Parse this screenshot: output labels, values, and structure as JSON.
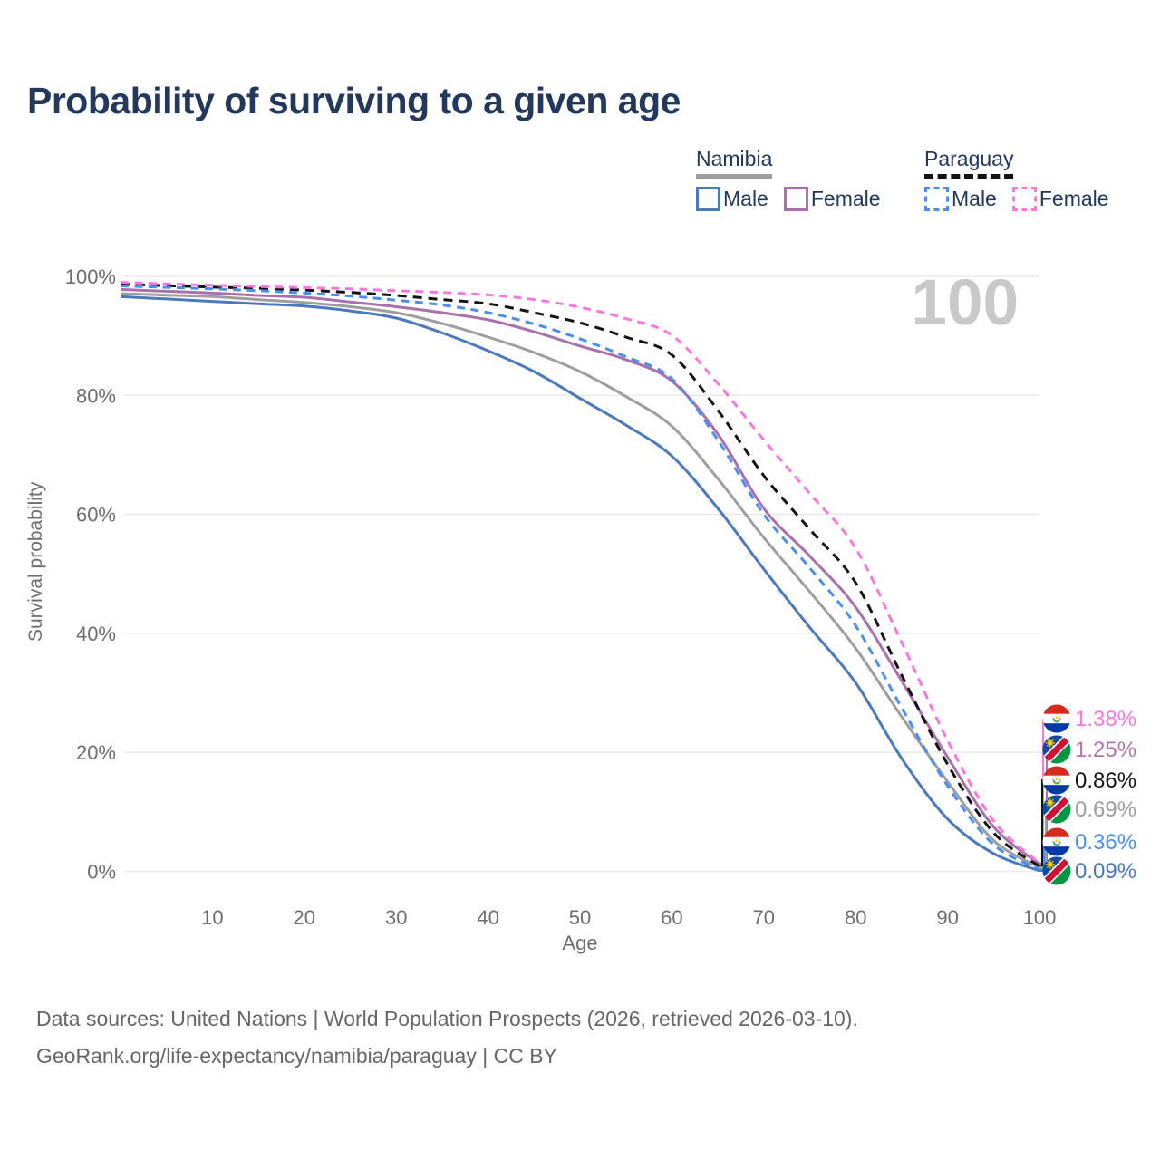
{
  "title": "Probability of surviving to a given age",
  "watermark": "100",
  "legend": {
    "groups": [
      {
        "country": "Namibia",
        "line_style": "solid",
        "underline_color": "#9e9e9e",
        "items": [
          {
            "label": "Male",
            "color": "#4a79bd"
          },
          {
            "label": "Female",
            "color": "#a970ab"
          }
        ]
      },
      {
        "country": "Paraguay",
        "line_style": "dashed",
        "underline_color": "#141414",
        "items": [
          {
            "label": "Male",
            "color": "#4a8fee"
          },
          {
            "label": "Female",
            "color": "#fc77dd"
          }
        ]
      }
    ]
  },
  "axes": {
    "y_label": "Survival probability",
    "x_label": "Age",
    "y_ticks": [
      "0%",
      "20%",
      "40%",
      "60%",
      "80%",
      "100%"
    ],
    "x_ticks": [
      10,
      20,
      30,
      40,
      50,
      60,
      70,
      80,
      90,
      100
    ]
  },
  "chart_data": {
    "type": "line",
    "title": "Probability of surviving to a given age",
    "xlabel": "Age",
    "ylabel": "Survival probability",
    "xlim": [
      0,
      100
    ],
    "ylim": [
      0,
      100
    ],
    "y_unit": "percent",
    "grid": "horizontal",
    "legend_position": "top-right",
    "x": [
      0,
      5,
      10,
      15,
      20,
      25,
      30,
      35,
      40,
      45,
      50,
      55,
      60,
      65,
      70,
      75,
      80,
      85,
      90,
      95,
      100
    ],
    "series": [
      {
        "name": "Namibia Both sexes",
        "country": "Namibia",
        "sex": "Both sexes",
        "style": "solid",
        "color": "#9e9e9e",
        "values": [
          97.1,
          96.85,
          96.6,
          96.1,
          95.6,
          94.9,
          93.9,
          92.1,
          89.8,
          87.2,
          84.0,
          79.8,
          74.8,
          66.0,
          56.1,
          47.0,
          37.5,
          26.0,
          15.1,
          5.2,
          0.69
        ]
      },
      {
        "name": "Namibia Male",
        "country": "Namibia",
        "sex": "Male",
        "style": "solid",
        "color": "#4a79bd",
        "values": [
          96.6,
          96.2,
          95.8,
          95.4,
          95.0,
          94.2,
          93.0,
          90.5,
          87.5,
          84.0,
          79.5,
          75.0,
          69.8,
          61.0,
          50.8,
          41.0,
          31.7,
          19.0,
          8.8,
          3.0,
          0.09
        ]
      },
      {
        "name": "Namibia Female",
        "country": "Namibia",
        "sex": "Female",
        "style": "solid",
        "color": "#a970ab",
        "values": [
          97.8,
          97.5,
          97.2,
          96.8,
          96.5,
          95.7,
          94.9,
          93.9,
          92.7,
          90.7,
          88.3,
          86.0,
          82.4,
          73.5,
          61.0,
          53.0,
          44.4,
          32.0,
          19.2,
          7.5,
          1.25
        ]
      },
      {
        "name": "Paraguay Both sexes",
        "country": "Paraguay",
        "sex": "Both sexes",
        "style": "dashed",
        "color": "#141414",
        "values": [
          98.7,
          98.45,
          98.2,
          98.0,
          97.7,
          97.3,
          96.8,
          96.1,
          95.4,
          93.9,
          92.2,
          89.8,
          86.8,
          77.5,
          66.5,
          57.5,
          48.5,
          33.0,
          18.0,
          6.5,
          0.86
        ]
      },
      {
        "name": "Paraguay Male",
        "country": "Paraguay",
        "sex": "Male",
        "style": "dashed",
        "color": "#4a8fee",
        "values": [
          98.4,
          98.15,
          97.9,
          97.6,
          97.2,
          96.7,
          96.0,
          95.2,
          93.9,
          92.0,
          89.5,
          86.5,
          82.8,
          72.5,
          60.0,
          51.0,
          41.3,
          27.5,
          14.4,
          4.5,
          0.36
        ]
      },
      {
        "name": "Paraguay Female",
        "country": "Paraguay",
        "sex": "Female",
        "style": "dashed",
        "color": "#fc77dd",
        "values": [
          99.0,
          98.75,
          98.5,
          98.3,
          98.1,
          97.9,
          97.6,
          97.3,
          96.9,
          96.1,
          94.8,
          92.9,
          90.1,
          82.0,
          72.5,
          63.5,
          54.3,
          38.5,
          22.0,
          8.5,
          1.38
        ]
      }
    ]
  },
  "end_labels": [
    {
      "value": "1.38%",
      "series": "Paraguay Female",
      "flag": "paraguay",
      "color": "#fc77dd"
    },
    {
      "value": "1.25%",
      "series": "Namibia Female",
      "flag": "namibia",
      "color": "#af77b0"
    },
    {
      "value": "0.86%",
      "series": "Paraguay Both sexes",
      "flag": "paraguay",
      "color": "#141414"
    },
    {
      "value": "0.69%",
      "series": "Namibia Both sexes",
      "flag": "namibia",
      "color": "#9e9e9e"
    },
    {
      "value": "0.36%",
      "series": "Paraguay Male",
      "flag": "paraguay",
      "color": "#4a8fee"
    },
    {
      "value": "0.09%",
      "series": "Namibia Male",
      "flag": "namibia",
      "color": "#4a79bd"
    }
  ],
  "footer": {
    "line1": "Data sources: United Nations | World Population Prospects (2026, retrieved 2026-03-10).",
    "line2": "GeoRank.org/life-expectancy/namibia/paraguay | CC BY"
  }
}
